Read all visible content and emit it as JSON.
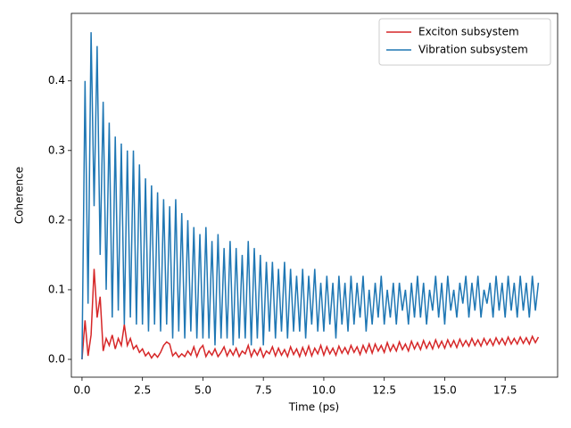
{
  "chart_data": {
    "type": "line",
    "xlabel": "Time (ps)",
    "ylabel": "Coherence",
    "x": [
      0,
      0.125,
      0.25,
      0.375,
      0.5,
      0.625,
      0.75,
      0.875,
      1,
      1.125,
      1.25,
      1.375,
      1.5,
      1.625,
      1.75,
      1.875,
      2,
      2.125,
      2.25,
      2.375,
      2.5,
      2.625,
      2.75,
      2.875,
      3,
      3.125,
      3.25,
      3.375,
      3.5,
      3.625,
      3.75,
      3.875,
      4,
      4.125,
      4.25,
      4.375,
      4.5,
      4.625,
      4.75,
      4.875,
      5,
      5.125,
      5.25,
      5.375,
      5.5,
      5.625,
      5.75,
      5.875,
      6,
      6.125,
      6.25,
      6.375,
      6.5,
      6.625,
      6.75,
      6.875,
      7,
      7.125,
      7.25,
      7.375,
      7.5,
      7.625,
      7.75,
      7.875,
      8,
      8.125,
      8.25,
      8.375,
      8.5,
      8.625,
      8.75,
      8.875,
      9,
      9.125,
      9.25,
      9.375,
      9.5,
      9.625,
      9.75,
      9.875,
      10,
      10.125,
      10.25,
      10.375,
      10.5,
      10.625,
      10.75,
      10.875,
      11,
      11.125,
      11.25,
      11.375,
      11.5,
      11.625,
      11.75,
      11.875,
      12,
      12.125,
      12.25,
      12.375,
      12.5,
      12.625,
      12.75,
      12.875,
      13,
      13.125,
      13.25,
      13.375,
      13.5,
      13.625,
      13.75,
      13.875,
      14,
      14.125,
      14.25,
      14.375,
      14.5,
      14.625,
      14.75,
      14.875,
      15,
      15.125,
      15.25,
      15.375,
      15.5,
      15.625,
      15.75,
      15.875,
      16,
      16.125,
      16.25,
      16.375,
      16.5,
      16.625,
      16.75,
      16.875,
      17,
      17.125,
      17.25,
      17.375,
      17.5,
      17.625,
      17.75,
      17.875,
      18,
      18.125,
      18.25,
      18.375,
      18.5,
      18.625,
      18.75,
      18.875
    ],
    "series": [
      {
        "name": "Exciton subsystem",
        "color": "#d62728",
        "values": [
          0,
          0.056,
          0.005,
          0.035,
          0.13,
          0.06,
          0.09,
          0.012,
          0.03,
          0.02,
          0.035,
          0.015,
          0.03,
          0.02,
          0.05,
          0.02,
          0.03,
          0.015,
          0.02,
          0.01,
          0.015,
          0.005,
          0.01,
          0.002,
          0.008,
          0.003,
          0.01,
          0.02,
          0.025,
          0.022,
          0.005,
          0.01,
          0.003,
          0.008,
          0.004,
          0.012,
          0.006,
          0.018,
          0.004,
          0.015,
          0.02,
          0.004,
          0.012,
          0.006,
          0.015,
          0.004,
          0.01,
          0.018,
          0.005,
          0.014,
          0.006,
          0.016,
          0.004,
          0.012,
          0.008,
          0.02,
          0.004,
          0.014,
          0.006,
          0.016,
          0.003,
          0.012,
          0.008,
          0.018,
          0.005,
          0.016,
          0.006,
          0.014,
          0.004,
          0.018,
          0.007,
          0.015,
          0.004,
          0.017,
          0.006,
          0.019,
          0.005,
          0.016,
          0.008,
          0.02,
          0.006,
          0.018,
          0.008,
          0.016,
          0.006,
          0.019,
          0.009,
          0.017,
          0.008,
          0.02,
          0.01,
          0.018,
          0.007,
          0.02,
          0.01,
          0.022,
          0.009,
          0.022,
          0.012,
          0.02,
          0.01,
          0.024,
          0.012,
          0.021,
          0.012,
          0.025,
          0.014,
          0.022,
          0.012,
          0.026,
          0.015,
          0.024,
          0.014,
          0.027,
          0.016,
          0.025,
          0.015,
          0.028,
          0.017,
          0.026,
          0.016,
          0.028,
          0.018,
          0.027,
          0.017,
          0.029,
          0.019,
          0.027,
          0.019,
          0.03,
          0.02,
          0.028,
          0.019,
          0.03,
          0.021,
          0.029,
          0.02,
          0.031,
          0.022,
          0.03,
          0.021,
          0.032,
          0.022,
          0.03,
          0.022,
          0.032,
          0.023,
          0.031,
          0.022,
          0.033,
          0.024,
          0.032
        ]
      },
      {
        "name": "Vibration subsystem",
        "color": "#1f77b4",
        "values": [
          0,
          0.4,
          0.08,
          0.47,
          0.22,
          0.45,
          0.15,
          0.37,
          0.1,
          0.34,
          0.06,
          0.32,
          0.07,
          0.31,
          0.05,
          0.3,
          0.06,
          0.3,
          0.05,
          0.28,
          0.05,
          0.26,
          0.04,
          0.25,
          0.05,
          0.24,
          0.04,
          0.23,
          0.05,
          0.22,
          0.03,
          0.23,
          0.04,
          0.21,
          0.03,
          0.2,
          0.04,
          0.19,
          0.03,
          0.18,
          0.03,
          0.19,
          0.03,
          0.17,
          0.02,
          0.18,
          0.03,
          0.16,
          0.03,
          0.17,
          0.02,
          0.16,
          0.03,
          0.15,
          0.03,
          0.17,
          0.02,
          0.16,
          0.03,
          0.15,
          0.02,
          0.14,
          0.04,
          0.14,
          0.03,
          0.13,
          0.04,
          0.14,
          0.03,
          0.13,
          0.04,
          0.12,
          0.04,
          0.13,
          0.03,
          0.12,
          0.05,
          0.13,
          0.04,
          0.11,
          0.04,
          0.12,
          0.05,
          0.11,
          0.03,
          0.12,
          0.05,
          0.11,
          0.04,
          0.12,
          0.05,
          0.11,
          0.06,
          0.12,
          0.04,
          0.1,
          0.05,
          0.11,
          0.06,
          0.12,
          0.05,
          0.1,
          0.06,
          0.11,
          0.05,
          0.11,
          0.07,
          0.1,
          0.05,
          0.11,
          0.06,
          0.12,
          0.06,
          0.11,
          0.05,
          0.1,
          0.07,
          0.12,
          0.06,
          0.11,
          0.05,
          0.12,
          0.07,
          0.1,
          0.06,
          0.11,
          0.08,
          0.12,
          0.06,
          0.11,
          0.07,
          0.12,
          0.06,
          0.1,
          0.08,
          0.11,
          0.06,
          0.12,
          0.07,
          0.11,
          0.06,
          0.12,
          0.07,
          0.11,
          0.06,
          0.12,
          0.07,
          0.11,
          0.06,
          0.12,
          0.07,
          0.11
        ]
      }
    ],
    "xlim": [
      -0.44,
      19.67
    ],
    "ylim": [
      -0.0256,
      0.497
    ],
    "xticks": [
      {
        "value": 0,
        "label": "0.0"
      },
      2.5,
      {
        "value": 5,
        "label": "5.0"
      },
      7.5,
      {
        "value": 10,
        "label": "10.0"
      },
      12.5,
      {
        "value": 15,
        "label": "15.0"
      },
      17.5
    ],
    "yticks": [
      {
        "value": 0,
        "label": "0.0"
      },
      0.1,
      0.2,
      0.3,
      0.4
    ],
    "legend": "upper right",
    "grid": false
  }
}
